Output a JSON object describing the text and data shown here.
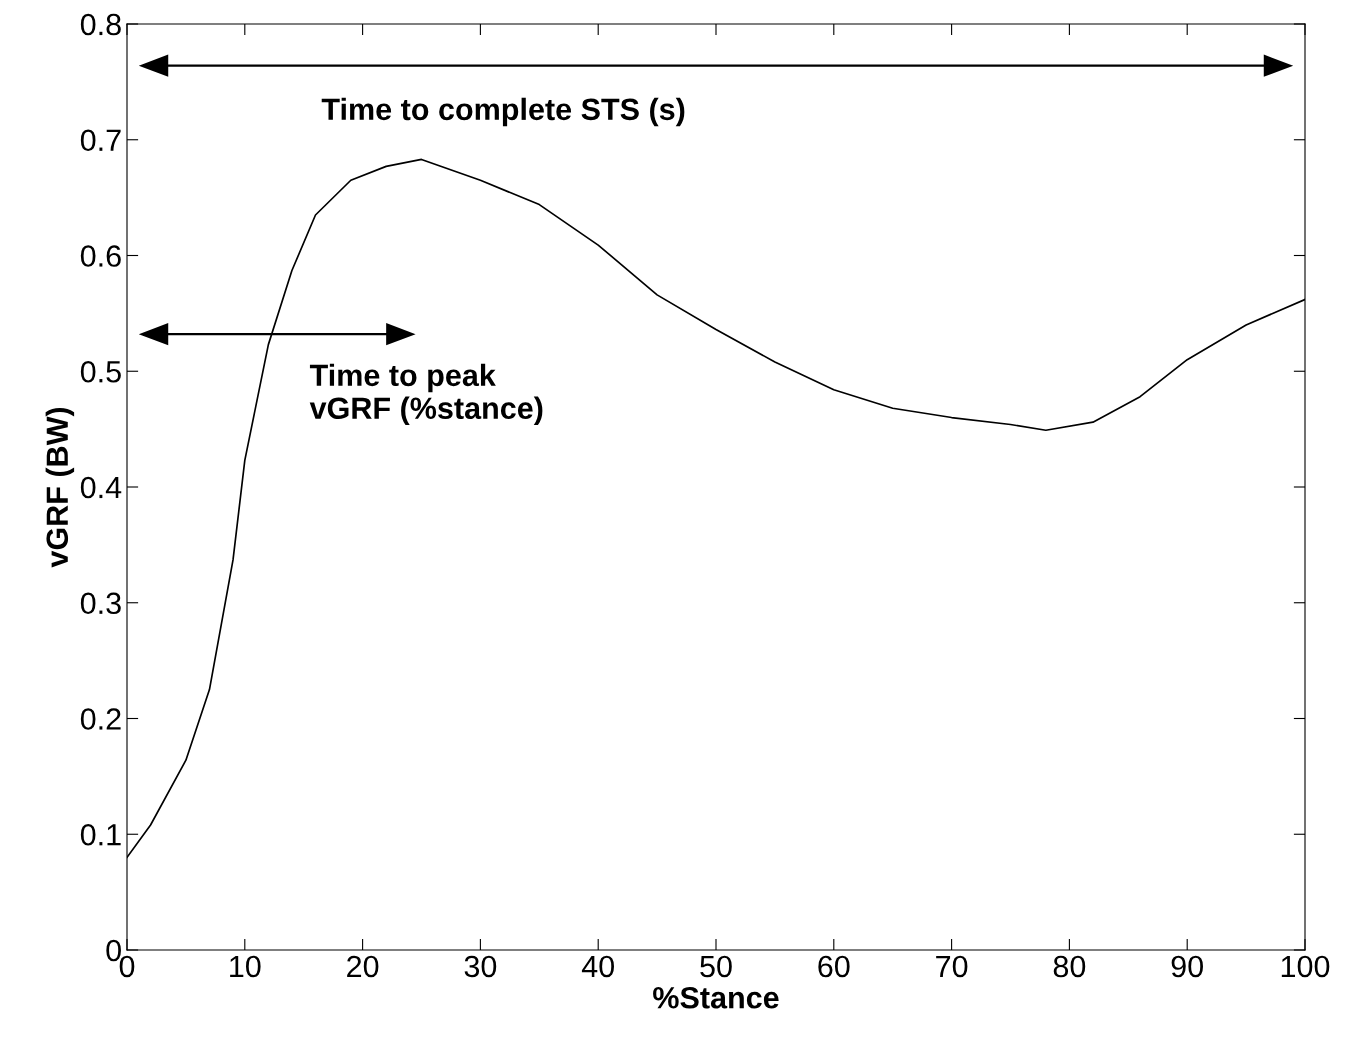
{
  "chart_data": {
    "type": "line",
    "xlabel": "%Stance",
    "ylabel": "vGRF (BW)",
    "x": [
      0,
      2,
      5,
      7,
      9,
      10,
      12,
      14,
      16,
      19,
      22,
      25,
      30,
      35,
      40,
      45,
      50,
      55,
      60,
      65,
      70,
      75,
      78,
      82,
      86,
      90,
      95,
      100
    ],
    "series": [
      {
        "color": "#000000",
        "values": [
          0.08,
          0.108,
          0.164,
          0.225,
          0.337,
          0.423,
          0.523,
          0.587,
          0.635,
          0.665,
          0.677,
          0.683,
          0.665,
          0.644,
          0.609,
          0.566,
          0.536,
          0.508,
          0.484,
          0.468,
          0.46,
          0.454,
          0.449,
          0.456,
          0.478,
          0.51,
          0.54,
          0.562
        ]
      }
    ],
    "xlim": [
      0,
      100
    ],
    "xticks": [
      0,
      10,
      20,
      30,
      40,
      50,
      60,
      70,
      80,
      90,
      100
    ],
    "ylim": [
      0,
      0.8
    ],
    "yticks": [
      0,
      0.1,
      0.2,
      0.3,
      0.4,
      0.5,
      0.6,
      0.7,
      0.8
    ],
    "annotations": [
      "Time to complete STS (s)",
      "Time to peak\nvGRF (%stance)"
    ],
    "grid": false,
    "legend": false,
    "marker": "none",
    "line_style": "solid"
  }
}
